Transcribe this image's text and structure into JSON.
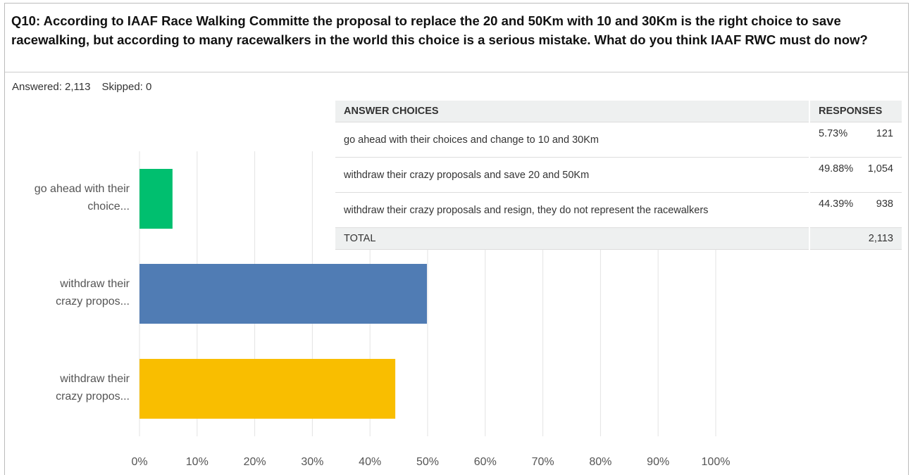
{
  "question": "Q10: According to IAAF Race Walking Committe the proposal to replace the 20 and 50Km with 10 and 30Km is the right choice to save racewalking, but according to many racewalkers in the world this choice is a serious mistake. What do you think IAAF RWC must do now?",
  "summary": {
    "answered": "Answered: 2,113",
    "skipped": "Skipped: 0"
  },
  "chart_data": {
    "type": "bar",
    "orientation": "horizontal",
    "categories": [
      "go ahead with their choice...",
      "withdraw their crazy propos...",
      "withdraw their crazy propos..."
    ],
    "values": [
      5.73,
      49.88,
      44.39
    ],
    "colors": [
      "#00bf6f",
      "#507cb4",
      "#f9be00"
    ],
    "xlim": [
      0,
      100
    ],
    "xticks": [
      {
        "value": 0,
        "label": "0%"
      },
      {
        "value": 10,
        "label": "10%"
      },
      {
        "value": 20,
        "label": "20%"
      },
      {
        "value": 30,
        "label": "30%"
      },
      {
        "value": 40,
        "label": "40%"
      },
      {
        "value": 50,
        "label": "50%"
      },
      {
        "value": 60,
        "label": "60%"
      },
      {
        "value": 70,
        "label": "70%"
      },
      {
        "value": 80,
        "label": "80%"
      },
      {
        "value": 90,
        "label": "90%"
      },
      {
        "value": 100,
        "label": "100%"
      }
    ],
    "grid": true
  },
  "table": {
    "headers": [
      "ANSWER CHOICES",
      "RESPONSES"
    ],
    "rows": [
      [
        "go ahead with their choices and change to 10 and 30Km",
        "5.73%",
        "121"
      ],
      [
        "withdraw their crazy proposals and save 20 and 50Km",
        "49.88%",
        "1,054"
      ],
      [
        "withdraw their crazy proposals and resign, they do not represent the racewalkers",
        "44.39%",
        "938"
      ]
    ],
    "total": [
      "TOTAL",
      "2,113"
    ]
  }
}
